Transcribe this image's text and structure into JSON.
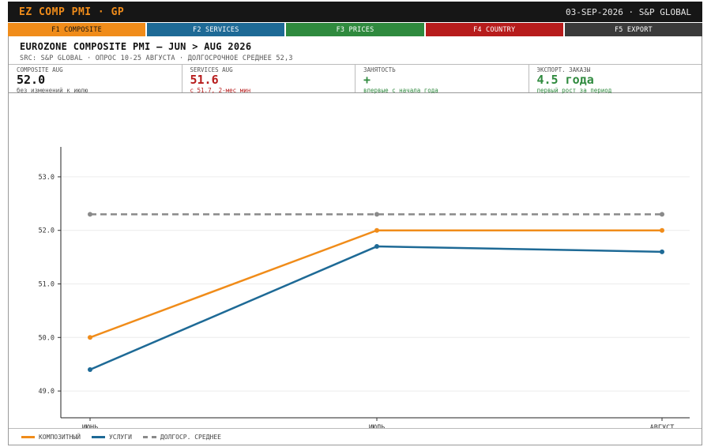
{
  "topbar": {
    "title": "EZ COMP PMI · GP",
    "meta": "03-SEP-2026 · S&P GLOBAL"
  },
  "fkeys": [
    {
      "label": "F1 COMPOSITE",
      "color": "#f08c1a",
      "text_color": "#111111"
    },
    {
      "label": "F2 SERVICES",
      "color": "#1e6a96",
      "text_color": "#ffffff"
    },
    {
      "label": "F3 PRICES",
      "color": "#2f8a3e",
      "text_color": "#ffffff"
    },
    {
      "label": "F4 COUNTRY",
      "color": "#b71c1c",
      "text_color": "#ffffff"
    },
    {
      "label": "F5 EXPORT",
      "color": "#3a3a3a",
      "text_color": "#ffffff"
    }
  ],
  "header": {
    "title": "EUROZONE COMPOSITE PMI — JUN > AUG 2026",
    "source": "SRC: S&P GLOBAL · ОПРОС 10-25 АВГУСТА · ДОЛГОСРОЧНОЕ СРЕДНЕЕ 52,3"
  },
  "kpis": [
    {
      "label": "COMPOSITE AUG",
      "value": "52.0",
      "sub": "без изменений к июлю",
      "value_color": "#111111",
      "sub_color": "#555555"
    },
    {
      "label": "SERVICES AUG",
      "value": "51.6",
      "sub": "с 51.7, 2-мес мин",
      "value_color": "#b71c1c",
      "sub_color": "#b71c1c"
    },
    {
      "label": "ЗАНЯТОСТЬ",
      "value": "+",
      "sub": "впервые с начала года",
      "value_color": "#2f8a3e",
      "sub_color": "#2f8a3e"
    },
    {
      "label": "ЭКСПОРТ. ЗАКАЗЫ",
      "value": "4.5 года",
      "sub": "первый рост за период",
      "value_color": "#2f8a3e",
      "sub_color": "#2f8a3e"
    }
  ],
  "chart_data": {
    "type": "line",
    "categories": [
      "ИЮНЬ",
      "ИЮЛЬ",
      "АВГУСТ"
    ],
    "series": [
      {
        "name": "КОМПОЗИТНЫЙ",
        "values": [
          50.0,
          52.0,
          52.0
        ],
        "color": "#f08c1a",
        "dashed": false
      },
      {
        "name": "УСЛУГИ",
        "values": [
          49.4,
          51.7,
          51.6
        ],
        "color": "#1e6a96",
        "dashed": false
      },
      {
        "name": "ДОЛГОСР. СРЕДНЕЕ",
        "values": [
          52.3,
          52.3,
          52.3
        ],
        "color": "#8a8a8a",
        "dashed": true
      }
    ],
    "ylim": [
      48.5,
      53.5
    ],
    "yticks": [
      "49.0",
      "50.0",
      "51.0",
      "52.0",
      "53.0"
    ],
    "grid": true,
    "legend": "bottom-left"
  }
}
